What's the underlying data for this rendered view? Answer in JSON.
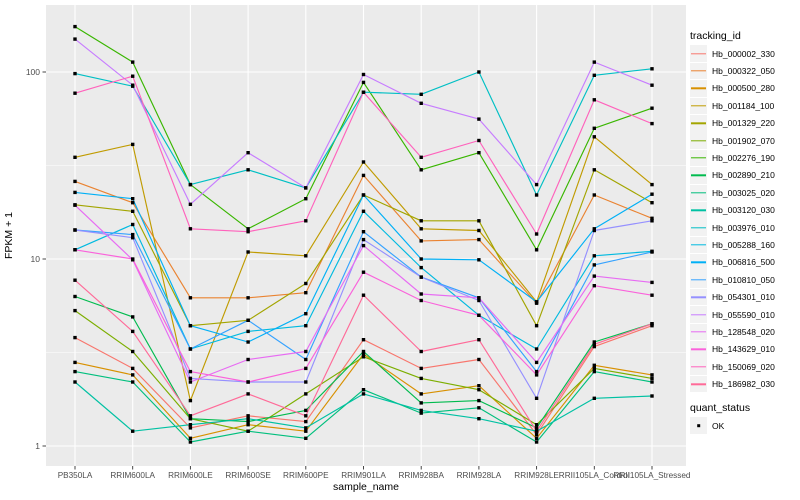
{
  "legend": {
    "tracking_title": "tracking_id",
    "quant_title": "quant_status",
    "quant_items": [
      {
        "label": "OK",
        "marker": "filled-black-square"
      }
    ],
    "key_fill": "#F2F2F2"
  },
  "axes": {
    "y_label": "FPKM + 1",
    "x_label": "sample_name",
    "y_tick_labels": [
      "100",
      "10",
      "1"
    ],
    "panel_fill": "#EBEBEB",
    "grid_color": "#FFFFFF",
    "tick_text_color": "#4D4D4D"
  },
  "chart_data": {
    "type": "line",
    "title": "",
    "xlabel": "sample_name",
    "ylabel": "FPKM + 1",
    "y_scale": "log10",
    "y_ticks": [
      1,
      10,
      100
    ],
    "y_minor_ticks": [
      3.162,
      31.62
    ],
    "ylim": [
      0.78,
      230
    ],
    "grid": true,
    "legend_position": "right",
    "point_shape": "filled-square-black",
    "categories": [
      "PB350LA",
      "RRIM600LA",
      "RRIM600LE",
      "RRIM600SE",
      "RRIM600PE",
      "RRIM901LA",
      "RRIM928BA",
      "RRIM928LA",
      "RRIM928LE",
      "RRII105LA_Control",
      "RRII105LA_Stressed"
    ],
    "series": [
      {
        "name": "Hb_000002_330",
        "color": "#F8766D",
        "values": [
          3.8,
          2.6,
          1.25,
          1.45,
          1.35,
          3.7,
          2.6,
          2.9,
          1.15,
          3.4,
          4.4
        ]
      },
      {
        "name": "Hb_000322_050",
        "color": "#EA8331",
        "values": [
          26,
          20,
          6.2,
          6.2,
          6.6,
          28,
          12.5,
          12.7,
          5.8,
          22,
          16.5
        ]
      },
      {
        "name": "Hb_000500_280",
        "color": "#D89000",
        "values": [
          2.8,
          2.4,
          1.1,
          1.3,
          1.2,
          3.1,
          1.9,
          2.1,
          1.1,
          2.7,
          2.4
        ]
      },
      {
        "name": "Hb_001184_100",
        "color": "#C09B00",
        "values": [
          35,
          41,
          1.75,
          10.9,
          10.4,
          33,
          14.5,
          14.2,
          5.9,
          45,
          25
        ]
      },
      {
        "name": "Hb_001329_220",
        "color": "#A3A500",
        "values": [
          19.5,
          18,
          4.4,
          4.7,
          7.4,
          22,
          16,
          16,
          4.4,
          30,
          20
        ]
      },
      {
        "name": "Hb_001902_070",
        "color": "#7CAE00",
        "values": [
          5.3,
          3.2,
          1.4,
          1.2,
          1.9,
          3.0,
          2.3,
          2.0,
          1.3,
          2.6,
          2.3
        ]
      },
      {
        "name": "Hb_002276_190",
        "color": "#39B600",
        "values": [
          175,
          113,
          25,
          14.5,
          21,
          88,
          30,
          37,
          11.2,
          50,
          64
        ]
      },
      {
        "name": "Hb_002890_210",
        "color": "#00BB4E",
        "values": [
          6.3,
          4.9,
          1.4,
          1.35,
          1.55,
          3.2,
          1.7,
          1.75,
          1.25,
          3.6,
          4.5
        ]
      },
      {
        "name": "Hb_003025_020",
        "color": "#00BF7D",
        "values": [
          2.5,
          2.2,
          1.05,
          1.2,
          1.1,
          2.0,
          1.5,
          1.6,
          1.05,
          2.5,
          2.2
        ]
      },
      {
        "name": "Hb_003120_030",
        "color": "#00C1A3",
        "values": [
          2.2,
          1.2,
          1.3,
          1.4,
          1.25,
          1.9,
          1.55,
          1.4,
          1.2,
          1.8,
          1.85
        ]
      },
      {
        "name": "Hb_003976_010",
        "color": "#00BFC4",
        "values": [
          98,
          84,
          25,
          30,
          24,
          78,
          76,
          100,
          22,
          96,
          104
        ]
      },
      {
        "name": "Hb_005288_160",
        "color": "#00BAE0",
        "values": [
          11.2,
          15.3,
          3.3,
          4.1,
          4.4,
          18,
          9,
          5,
          3.3,
          10.4,
          11
        ]
      },
      {
        "name": "Hb_006816_500",
        "color": "#00B0F6",
        "values": [
          22.7,
          21,
          4.4,
          3.6,
          5.1,
          22,
          10,
          9.9,
          5.9,
          14.5,
          22.2
        ]
      },
      {
        "name": "Hb_010810_050",
        "color": "#35A2FF",
        "values": [
          14.3,
          13.5,
          3.3,
          4.7,
          2.9,
          14,
          8,
          6.2,
          2.5,
          9.3,
          10.9
        ]
      },
      {
        "name": "Hb_054301_010",
        "color": "#9590FF",
        "values": [
          14.3,
          13,
          2.3,
          2.2,
          2.2,
          12.7,
          8,
          6,
          1.8,
          14.2,
          16
        ]
      },
      {
        "name": "Hb_055590_010",
        "color": "#C77CFF",
        "values": [
          150,
          85,
          19.6,
          37,
          24,
          97,
          68,
          56,
          25,
          113,
          85
        ]
      },
      {
        "name": "Hb_128548_020",
        "color": "#E76BF3",
        "values": [
          19.4,
          9.9,
          2.2,
          2.9,
          3.2,
          11.8,
          6.5,
          6.2,
          2.8,
          8.1,
          7.5
        ]
      },
      {
        "name": "Hb_143629_010",
        "color": "#FA62DB",
        "values": [
          11.2,
          10,
          2.5,
          2.2,
          2.6,
          8.5,
          6,
          5,
          2.4,
          7.2,
          6.4
        ]
      },
      {
        "name": "Hb_150069_020",
        "color": "#FF62BC",
        "values": [
          77,
          95,
          14.5,
          14,
          16,
          78,
          35,
          43,
          13.6,
          71,
          53
        ]
      },
      {
        "name": "Hb_186982_030",
        "color": "#FF6A98",
        "values": [
          7.7,
          4.1,
          1.45,
          1.9,
          1.45,
          6.4,
          3.2,
          3.7,
          1.2,
          3.5,
          4.5
        ]
      }
    ]
  }
}
